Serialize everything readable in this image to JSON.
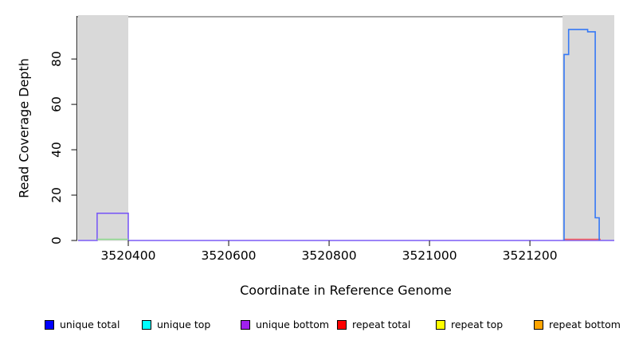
{
  "chart_data": {
    "type": "line",
    "subtype": "step-coverage-plot",
    "title": "",
    "xlabel": "Coordinate in Reference Genome",
    "ylabel": "Read Coverage Depth",
    "xlim": [
      3520300,
      3521368
    ],
    "ylim": [
      0,
      99
    ],
    "x_ticks": [
      3520400,
      3520600,
      3520800,
      3521000,
      3521200
    ],
    "y_ticks": [
      0,
      20,
      40,
      60,
      80
    ],
    "grid": false,
    "frame_color": "#6e6e6e",
    "axis_color": "#333333",
    "highlight_regions": [
      {
        "x0": 3520300,
        "x1": 3520400,
        "color": "#d9d9d9"
      },
      {
        "x0": 3521265,
        "x1": 3521368,
        "color": "#d9d9d9"
      }
    ],
    "series": [
      {
        "name": "unique bottom",
        "color": "#7b5cf5",
        "points": [
          [
            3520300,
            0
          ],
          [
            3520338,
            0
          ],
          [
            3520338,
            12
          ],
          [
            3520400,
            12
          ],
          [
            3520400,
            0
          ],
          [
            3521368,
            0
          ]
        ]
      },
      {
        "name": "unique top (zero segment)",
        "color": "#8fd98f",
        "points": [
          [
            3520338,
            0.5
          ],
          [
            3520400,
            0.5
          ]
        ]
      },
      {
        "name": "repeat total (zero segment)",
        "color": "#f65f5f",
        "points": [
          [
            3521268,
            0.5
          ],
          [
            3521341,
            0.5
          ]
        ]
      },
      {
        "name": "unique total",
        "color": "#3579f6",
        "points": [
          [
            3521268,
            0
          ],
          [
            3521268,
            82
          ],
          [
            3521277,
            82
          ],
          [
            3521277,
            93
          ],
          [
            3521315,
            93
          ],
          [
            3521315,
            92
          ],
          [
            3521330,
            92
          ],
          [
            3521330,
            10
          ],
          [
            3521338,
            10
          ],
          [
            3521338,
            0
          ]
        ]
      }
    ],
    "legend": {
      "position": "bottom",
      "entries": [
        {
          "label": "unique total",
          "color": "#0000ff"
        },
        {
          "label": "unique top",
          "color": "#00ffff"
        },
        {
          "label": "unique bottom",
          "color": "#a020f0"
        },
        {
          "label": "repeat total",
          "color": "#ff0000"
        },
        {
          "label": "repeat top",
          "color": "#ffff00"
        },
        {
          "label": "repeat bottom",
          "color": "#ffa500"
        }
      ]
    }
  }
}
